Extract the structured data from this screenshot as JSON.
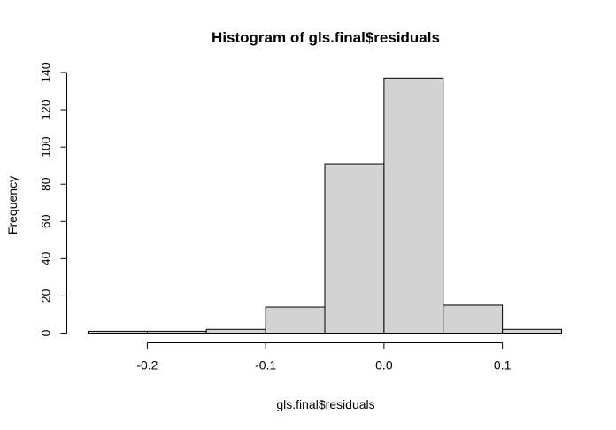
{
  "chart_data": {
    "type": "bar",
    "title": "Histogram of gls.final$residuals",
    "xlabel": "gls.final$residuals",
    "ylabel": "Frequency",
    "bins": [
      {
        "x0": -0.25,
        "x1": -0.2,
        "count": 1
      },
      {
        "x0": -0.2,
        "x1": -0.15,
        "count": 1
      },
      {
        "x0": -0.15,
        "x1": -0.1,
        "count": 2
      },
      {
        "x0": -0.1,
        "x1": -0.05,
        "count": 14
      },
      {
        "x0": -0.05,
        "x1": 0.0,
        "count": 91
      },
      {
        "x0": 0.0,
        "x1": 0.05,
        "count": 137
      },
      {
        "x0": 0.05,
        "x1": 0.1,
        "count": 15
      },
      {
        "x0": 0.1,
        "x1": 0.15,
        "count": 2
      }
    ],
    "xticks": [
      {
        "value": -0.2,
        "label": "-0.2"
      },
      {
        "value": -0.1,
        "label": "-0.1"
      },
      {
        "value": 0.0,
        "label": "0.0"
      },
      {
        "value": 0.1,
        "label": "0.1"
      }
    ],
    "yticks": [
      {
        "value": 0,
        "label": "0"
      },
      {
        "value": 20,
        "label": "20"
      },
      {
        "value": 40,
        "label": "40"
      },
      {
        "value": 60,
        "label": "60"
      },
      {
        "value": 80,
        "label": "80"
      },
      {
        "value": 100,
        "label": "100"
      },
      {
        "value": 120,
        "label": "120"
      },
      {
        "value": 140,
        "label": "140"
      }
    ],
    "xlim": [
      -0.25,
      0.15
    ],
    "ylim": [
      0,
      140
    ],
    "grid": false,
    "bar_color": "#d3d3d3",
    "edge_color": "#000000"
  }
}
